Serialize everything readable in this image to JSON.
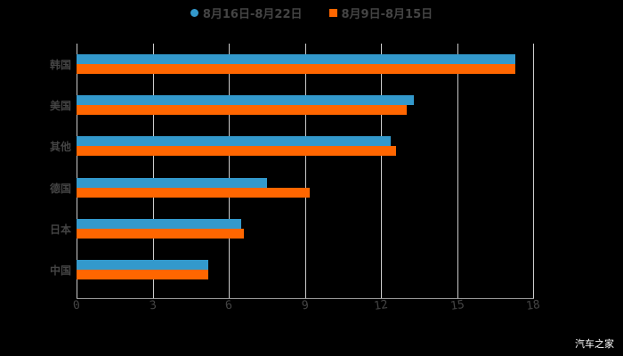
{
  "legend": [
    {
      "label": "8月16日-8月22日",
      "color": "#3399cc",
      "shape": "circle"
    },
    {
      "label": "8月9日-8月15日",
      "color": "#ff6600",
      "shape": "square"
    }
  ],
  "watermark": "汽车之家",
  "chart_data": {
    "type": "bar",
    "orientation": "horizontal",
    "title": "",
    "xlabel": "",
    "ylabel": "",
    "categories": [
      "韩国",
      "美国",
      "其他",
      "德国",
      "日本",
      "中国"
    ],
    "series": [
      {
        "name": "8月16日-8月22日",
        "color": "#3399cc",
        "values": [
          17.3,
          13.3,
          12.4,
          7.5,
          6.5,
          5.2
        ]
      },
      {
        "name": "8月9日-8月15日",
        "color": "#ff6600",
        "values": [
          17.3,
          13.0,
          12.6,
          9.2,
          6.6,
          5.2
        ]
      }
    ],
    "xlim": [
      0,
      18
    ],
    "xticks": [
      "0",
      "3",
      "6",
      "9",
      "12",
      "15",
      "18"
    ],
    "grid": true,
    "legend_position": "top"
  }
}
